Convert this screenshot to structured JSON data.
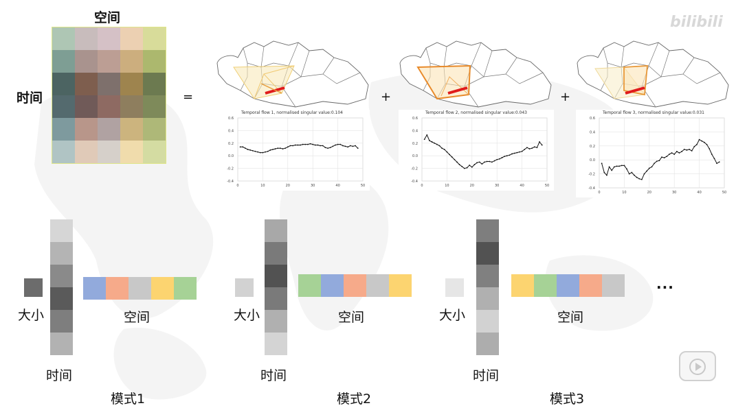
{
  "labels": {
    "space_top": "空间",
    "time_left": "时间",
    "equals": "=",
    "plus1": "+",
    "plus2": "+",
    "dots": "...",
    "logo": "bilibili"
  },
  "matrix_colors": [
    [
      "#aec6b4",
      "#c8bcbc",
      "#d5c1c6",
      "#ecd0b2",
      "#d8dc9a"
    ],
    [
      "#7e9e94",
      "#a9938e",
      "#bc9e94",
      "#ccae7e",
      "#acb86e"
    ],
    [
      "#4c6462",
      "#7e5e4e",
      "#7e706c",
      "#9e844e",
      "#6c7a50"
    ],
    [
      "#546a6e",
      "#705a58",
      "#8e6a62",
      "#8e7e5e",
      "#7e8a5a"
    ],
    [
      "#7e9a9e",
      "#b8968a",
      "#b0a2a2",
      "#ccb47e",
      "#aeb878"
    ],
    [
      "#b0c4c4",
      "#e0cab8",
      "#d6d0ca",
      "#f0dcac",
      "#d4dca2"
    ]
  ],
  "flows": [
    {
      "title": "Temporal flow 1, normalised singular value:0.104",
      "chart_data": {
        "type": "line",
        "ylim": [
          -0.4,
          0.6
        ],
        "xlim": [
          0,
          50
        ],
        "yticks": [
          "0.6",
          "0.4",
          "0.2",
          "0.0",
          "-0.2",
          "-0.4"
        ],
        "xticks": [
          "0",
          "10",
          "20",
          "30",
          "40",
          "50"
        ],
        "x": [
          1,
          2,
          3,
          4,
          5,
          6,
          7,
          8,
          9,
          10,
          11,
          12,
          13,
          14,
          15,
          16,
          17,
          18,
          19,
          20,
          21,
          22,
          23,
          24,
          25,
          26,
          27,
          28,
          29,
          30,
          31,
          32,
          33,
          34,
          35,
          36,
          37,
          38,
          39,
          40,
          41,
          42,
          43,
          44,
          45,
          46,
          47,
          48
        ],
        "y": [
          0.14,
          0.14,
          0.12,
          0.1,
          0.09,
          0.08,
          0.07,
          0.06,
          0.05,
          0.05,
          0.06,
          0.07,
          0.09,
          0.1,
          0.11,
          0.12,
          0.12,
          0.11,
          0.12,
          0.14,
          0.16,
          0.16,
          0.17,
          0.17,
          0.17,
          0.18,
          0.18,
          0.18,
          0.19,
          0.18,
          0.17,
          0.17,
          0.16,
          0.16,
          0.13,
          0.12,
          0.13,
          0.15,
          0.17,
          0.18,
          0.18,
          0.16,
          0.15,
          0.14,
          0.16,
          0.15,
          0.16,
          0.12
        ]
      }
    },
    {
      "title": "Temporal flow 2, normalised singular value:0.043",
      "chart_data": {
        "type": "line",
        "ylim": [
          -0.4,
          0.6
        ],
        "xlim": [
          0,
          50
        ],
        "yticks": [
          "0.6",
          "0.4",
          "0.2",
          "0.0",
          "-0.2",
          "-0.4"
        ],
        "xticks": [
          "0",
          "10",
          "20",
          "30",
          "40",
          "50"
        ],
        "x": [
          1,
          2,
          3,
          4,
          5,
          6,
          7,
          8,
          9,
          10,
          11,
          12,
          13,
          14,
          15,
          16,
          17,
          18,
          19,
          20,
          21,
          22,
          23,
          24,
          25,
          26,
          27,
          28,
          29,
          30,
          31,
          32,
          33,
          34,
          35,
          36,
          37,
          38,
          39,
          40,
          41,
          42,
          43,
          44,
          45,
          46,
          47,
          48
        ],
        "y": [
          0.26,
          0.33,
          0.24,
          0.22,
          0.2,
          0.18,
          0.16,
          0.12,
          0.1,
          0.06,
          0.02,
          -0.02,
          -0.06,
          -0.1,
          -0.14,
          -0.17,
          -0.2,
          -0.19,
          -0.15,
          -0.18,
          -0.14,
          -0.11,
          -0.1,
          -0.13,
          -0.1,
          -0.09,
          -0.09,
          -0.1,
          -0.08,
          -0.06,
          -0.05,
          -0.03,
          -0.01,
          0.0,
          0.01,
          0.03,
          0.04,
          0.05,
          0.06,
          0.07,
          0.1,
          0.13,
          0.11,
          0.12,
          0.14,
          0.13,
          0.22,
          0.17
        ]
      }
    },
    {
      "title": "Temporal flow 3, normalised singular value:0.031",
      "chart_data": {
        "type": "line",
        "ylim": [
          -0.4,
          0.6
        ],
        "xlim": [
          0,
          50
        ],
        "yticks": [
          "0.6",
          "0.4",
          "0.2",
          "0.0",
          "-0.2",
          "-0.4"
        ],
        "xticks": [
          "0",
          "10",
          "20",
          "30",
          "40",
          "50"
        ],
        "x": [
          1,
          2,
          3,
          4,
          5,
          6,
          7,
          8,
          9,
          10,
          11,
          12,
          13,
          14,
          15,
          16,
          17,
          18,
          19,
          20,
          21,
          22,
          23,
          24,
          25,
          26,
          27,
          28,
          29,
          30,
          31,
          32,
          33,
          34,
          35,
          36,
          37,
          38,
          39,
          40,
          41,
          42,
          43,
          44,
          45,
          46,
          47,
          48
        ],
        "y": [
          -0.05,
          -0.18,
          -0.22,
          -0.1,
          -0.15,
          -0.1,
          -0.09,
          -0.09,
          -0.08,
          -0.08,
          -0.13,
          -0.2,
          -0.18,
          -0.22,
          -0.25,
          -0.27,
          -0.28,
          -0.2,
          -0.16,
          -0.12,
          -0.1,
          -0.05,
          -0.02,
          -0.01,
          0.04,
          0.03,
          0.05,
          0.08,
          0.1,
          0.08,
          0.12,
          0.1,
          0.12,
          0.15,
          0.14,
          0.15,
          0.13,
          0.19,
          0.22,
          0.29,
          0.27,
          0.25,
          0.22,
          0.16,
          0.08,
          0.02,
          -0.05,
          -0.03
        ]
      }
    }
  ],
  "modes": [
    {
      "name": "模式1",
      "size_label": "大小",
      "space_label": "空间",
      "time_label": "时间",
      "scalar_color": "#6c6c6c",
      "time_colors": [
        "#d6d6d6",
        "#b4b4b4",
        "#8a8a8a",
        "#5a5a5a",
        "#7e7e7e",
        "#b2b2b2"
      ],
      "space_colors": [
        "#92aadc",
        "#f6aa8a",
        "#c8c8c8",
        "#fcd470",
        "#a6d296"
      ]
    },
    {
      "name": "模式2",
      "size_label": "大小",
      "space_label": "空间",
      "time_label": "时间",
      "scalar_color": "#d2d2d2",
      "time_colors": [
        "#a8a8a8",
        "#7a7a7a",
        "#525252",
        "#7a7a7a",
        "#b0b0b0",
        "#d4d4d4"
      ],
      "space_colors": [
        "#a6d296",
        "#92aadc",
        "#f6aa8a",
        "#c8c8c8",
        "#fcd470"
      ]
    },
    {
      "name": "模式3",
      "size_label": "大小",
      "space_label": "空间",
      "time_label": "时间",
      "scalar_color": "#e6e6e6",
      "time_colors": [
        "#7e7e7e",
        "#525252",
        "#808080",
        "#b0b0b0",
        "#d2d2d2",
        "#adadad"
      ],
      "space_colors": [
        "#fcd470",
        "#a6d296",
        "#92aadc",
        "#f6aa8a",
        "#c8c8c8"
      ]
    }
  ]
}
